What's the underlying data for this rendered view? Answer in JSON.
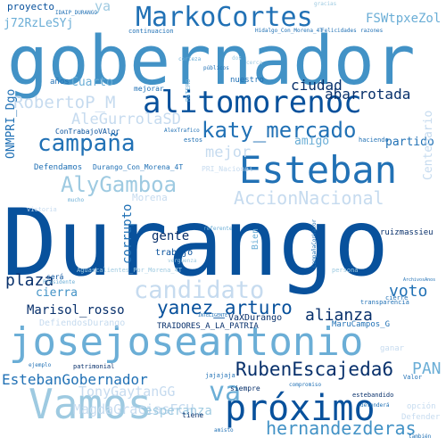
{
  "palette": {
    "background": "#ffffff",
    "dark": "#08306b",
    "deep": "#08519c",
    "mid": "#2171b5",
    "medium": "#4292c6",
    "light": "#6baed6",
    "pale": "#9ecae1",
    "faint": "#c6dbef"
  },
  "words": {
    "durango": "Durango",
    "gobernador": "gobernador",
    "josejoseantonio": "josejoseantonio",
    "markocortes": "MarkoCortes",
    "alitomorenoc": "alitomorenoc",
    "esteban": "Esteban",
    "vamos": "Vamos",
    "proximo": "próximo",
    "candidato": "candidato",
    "campana": "campaña",
    "katy_mercado": "katy_mercado",
    "alygamboa": "AlyGamboa",
    "yanez_arturo": "yanez_arturo",
    "accionnacional": "AccionNacional",
    "rubenescajeda6": "RubenEscajeda6",
    "hernandezderas": "hernandezderas",
    "va": "va",
    "alianza": "alianza",
    "estebangobernador": "EstebanGobernador",
    "marisol_rosso": "Marisol_rosso",
    "robertop_m": "RobertoP_M",
    "alegurrolasd": "AleGurrolaSD",
    "ciudad": "ciudad",
    "abarrotada": "abarrotada",
    "plaza": "plaza",
    "voto": "voto",
    "mejor": "mejor",
    "amigo": "amigo",
    "partido": "partido",
    "gente": "gente",
    "corrupto": "corrupto",
    "cierra": "cierra",
    "pan": "PAN",
    "tonygaytangg": "TonyGaytanGG",
    "magdagraciasfch": "MagdaGraciasFCH",
    "esperanza": "esperanza",
    "j72rzlesyj": "j72RzLeSYj",
    "fswtpxezol": "FSWtpxeZol",
    "proyecto": "proyecto",
    "cuarto": "Cuarto",
    "onmpri_dgo": "ONMPRI_Dgo",
    "centenario": "Centenario",
    "defendamos": "Defendamos",
    "durango_con_morena_4t": "Durango_Con_Morena_4T",
    "contrabajovalor": "ConTrabajoVAlor",
    "trabajo": "trabajo",
    "morena": "Morena",
    "marucampos_g": "MaruCampos_G",
    "vaxdurango": "VaXDurango",
    "traidores_a_la_patria": "TRAIDORES_A_LA_PATRIA",
    "aguascalientes_por_morena_4t": "Aguascalientes_Por_Morena_4T",
    "defiendosdurango": "DefiendosDurango",
    "ruizmassieu": "ruizmassieu",
    "anos": "años",
    "mejorar": "mejorar",
    "nuestro": "nuestro",
    "ya": "ya",
    "idaip_durango": "IDAIP_DURANGO",
    "continuacion": "continuacion",
    "hidalgo_con_morena_4t": "Hidalgo_Con_Morena_4T",
    "felicidades": "Felicidades",
    "razones": "razones",
    "siempre": "siempre",
    "tiene": "tiene",
    "valor": "Valor",
    "estebandido": "estebandido",
    "opcion": "opción",
    "defender": "Defender",
    "sera": "será",
    "presidente": "Presidente",
    "haciendo": "haciendo",
    "estos": "estos",
    "compromiso": "compromiso",
    "bien": "Bien",
    "transparencia": "transparencia",
    "cierre": "cierre",
    "patrimonial": "patrimonial",
    "ejemplo": "ejemplo",
    "jajajaja": "jajajaja",
    "ganar": "ganar",
    "victoria": "victoria",
    "mucho": "mucho",
    "referente": "referente",
    "pri_nacional": "PRI_Nacional",
    "persona": "persona",
    "inteligente": "INTELIGENTE",
    "archivosanos": "ArchivosAnos",
    "campanaconvalor": "CampañaConValor",
    "ratero": "RATERO",
    "publicos": "públicos",
    "certeza": "certeza",
    "gracias": "gracias",
    "aliexfonicano": "AlexTrafico",
    "dos": "dos",
    "cerca": "cerca",
    "tambien": "también",
    "vergunza": "vergüenza",
    "defendera": "defenderá",
    "amisto": "amisto"
  }
}
